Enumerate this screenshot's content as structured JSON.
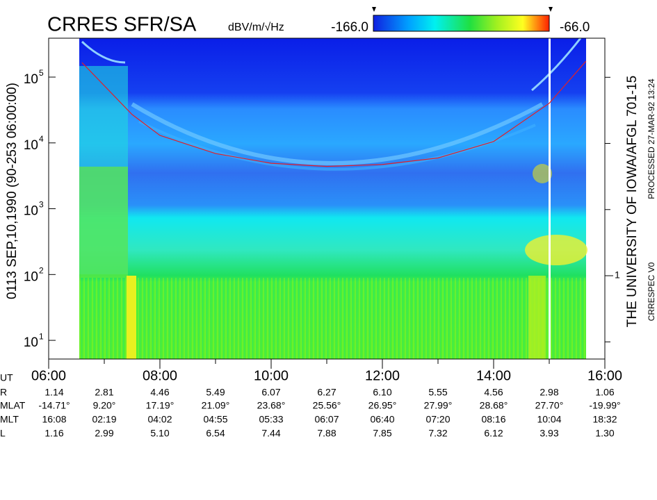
{
  "chart_data": {
    "type": "spectrogram",
    "title": "CRRES SFR/SA",
    "colorbar_label": "dBV/m/√Hz",
    "clim": [
      {
        "value": -166,
        "label": "-166.0"
      },
      {
        "value": -66,
        "label": "-66.0"
      }
    ],
    "y_label": "0113    SEP,10,1990   (90-253 06:00:00)",
    "right_label": "THE UNIVERSITY OF IOWA/AFGL 701-15",
    "processed": "PROCESSED 27-MAR-92  13:24",
    "version": "CRRESPEC V0",
    "log_y": true,
    "ylim": [
      5.2,
      390000
    ],
    "yticks": [
      {
        "value": 10,
        "label": "10",
        "exponent": "1"
      },
      {
        "value": 100,
        "label": "10",
        "exponent": "2"
      },
      {
        "value": 1000,
        "label": "10",
        "exponent": "3"
      },
      {
        "value": 10000,
        "label": "10",
        "exponent": "4"
      },
      {
        "value": 100000,
        "label": "10",
        "exponent": "5"
      }
    ],
    "y2lim": [
      0.055,
      3900
    ],
    "y2ticks": [
      1
    ],
    "y2minorticks": [
      0.1,
      10,
      100,
      1000
    ],
    "x_label": "UT",
    "xlim": [
      6,
      16
    ],
    "xticks": [
      {
        "value": 6,
        "label": "06:00"
      },
      {
        "value": 8,
        "label": "08:00"
      },
      {
        "value": 10,
        "label": "10:00"
      },
      {
        "value": 12,
        "label": "12:00"
      },
      {
        "value": 14,
        "label": "14:00"
      },
      {
        "value": 16,
        "label": "16:00"
      }
    ],
    "xminorticks": [
      7,
      9,
      11,
      13,
      15
    ],
    "series": [
      {
        "color": "#e0202a",
        "x": [
          6.6,
          7.5,
          8,
          9,
          10,
          11,
          12,
          13,
          14,
          15,
          15.66
        ],
        "values": [
          166000,
          27000,
          13000,
          6900,
          4900,
          4400,
          4700,
          5900,
          10500,
          40000,
          174000
        ]
      }
    ],
    "ephemeris": [
      {
        "label": "R",
        "values": [
          "1.14",
          "2.81",
          "4.46",
          "5.49",
          "6.07",
          "6.27",
          "6.10",
          "5.55",
          "4.56",
          "2.98",
          "1.06"
        ]
      },
      {
        "label": "MLAT",
        "values": [
          "-14.71°",
          "9.20°",
          "17.19°",
          "21.09°",
          "23.68°",
          "25.56°",
          "26.95°",
          "27.99°",
          "28.68°",
          "27.70°",
          "-19.99°"
        ]
      },
      {
        "label": "MLT",
        "values": [
          "16:08",
          "02:19",
          "04:02",
          "04:55",
          "05:33",
          "06:07",
          "06:40",
          "07:20",
          "08:16",
          "10:04",
          "18:32"
        ]
      },
      {
        "label": "L",
        "values": [
          "1.16",
          "2.99",
          "5.10",
          "6.54",
          "7.44",
          "7.88",
          "7.85",
          "7.32",
          "6.12",
          "3.93",
          "1.30"
        ]
      }
    ]
  }
}
